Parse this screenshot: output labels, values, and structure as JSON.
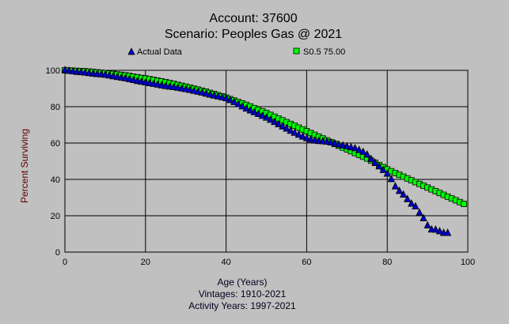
{
  "chart_data": {
    "type": "scatter",
    "title": "Account: 37600",
    "subtitle": "Scenario: Peoples Gas @ 2021",
    "xlabel": "Age (Years)",
    "ylabel": "Percent Surviving",
    "footnotes": [
      "Vintages: 1910-2021",
      "Activity Years: 1997-2021"
    ],
    "xlim": [
      0,
      100
    ],
    "ylim": [
      0,
      100
    ],
    "xticks": [
      0,
      20,
      40,
      60,
      80,
      100
    ],
    "yticks": [
      0,
      20,
      40,
      60,
      80,
      100
    ],
    "grid": true,
    "legend_position": "top",
    "series": [
      {
        "name": "Actual Data",
        "marker": "triangle",
        "color": "#0000cc",
        "x": [
          0,
          1,
          2,
          3,
          4,
          5,
          6,
          7,
          8,
          9,
          10,
          11,
          12,
          13,
          14,
          15,
          16,
          17,
          18,
          19,
          20,
          21,
          22,
          23,
          24,
          25,
          26,
          27,
          28,
          29,
          30,
          31,
          32,
          33,
          34,
          35,
          36,
          37,
          38,
          39,
          40,
          41,
          42,
          43,
          44,
          45,
          46,
          47,
          48,
          49,
          50,
          51,
          52,
          53,
          54,
          55,
          56,
          57,
          58,
          59,
          60,
          61,
          62,
          63,
          64,
          65,
          66,
          67,
          68,
          69,
          70,
          71,
          72,
          73,
          74,
          75,
          76,
          77,
          78,
          79,
          80,
          81,
          82,
          83,
          84,
          85,
          86,
          87,
          88,
          89,
          90,
          91,
          92,
          93,
          94,
          95
        ],
        "y": [
          100,
          99.6,
          99.3,
          99.0,
          98.8,
          98.6,
          98.3,
          98.0,
          97.8,
          97.6,
          97.4,
          97.0,
          96.6,
          96.2,
          95.8,
          95.5,
          95.0,
          94.5,
          94.0,
          93.6,
          93.2,
          92.8,
          92.4,
          92.0,
          91.6,
          91.2,
          90.9,
          90.6,
          90.3,
          89.9,
          89.5,
          89.1,
          88.6,
          88.1,
          87.6,
          87.0,
          86.5,
          86.0,
          85.5,
          85.0,
          84.5,
          83.5,
          82.4,
          81.2,
          80.0,
          78.8,
          77.8,
          76.8,
          75.8,
          74.8,
          73.8,
          72.6,
          71.4,
          70.2,
          69.0,
          67.8,
          66.6,
          65.5,
          64.4,
          63.4,
          62.5,
          61.8,
          61.2,
          61.0,
          60.8,
          60.6,
          60.2,
          59.6,
          59.0,
          58.5,
          58.0,
          57.5,
          57.0,
          56.0,
          55.0,
          53.5,
          51.0,
          49.0,
          47.0,
          45.0,
          43.0,
          40.0,
          36.0,
          33.5,
          31.5,
          29.0,
          26.5,
          25.0,
          21.5,
          18.5,
          14.5,
          12.3,
          12.2,
          11.3,
          10.4,
          10.4
        ]
      },
      {
        "name": "S0.5 75.00",
        "marker": "square",
        "color": "#00ff00",
        "x": [
          0,
          1,
          2,
          3,
          4,
          5,
          6,
          7,
          8,
          9,
          10,
          11,
          12,
          13,
          14,
          15,
          16,
          17,
          18,
          19,
          20,
          21,
          22,
          23,
          24,
          25,
          26,
          27,
          28,
          29,
          30,
          31,
          32,
          33,
          34,
          35,
          36,
          37,
          38,
          39,
          40,
          41,
          42,
          43,
          44,
          45,
          46,
          47,
          48,
          49,
          50,
          51,
          52,
          53,
          54,
          55,
          56,
          57,
          58,
          59,
          60,
          61,
          62,
          63,
          64,
          65,
          66,
          67,
          68,
          69,
          70,
          71,
          72,
          73,
          74,
          75,
          76,
          77,
          78,
          79,
          80,
          81,
          82,
          83,
          84,
          85,
          86,
          87,
          88,
          89,
          90,
          91,
          92,
          93,
          94,
          95,
          96,
          97,
          98,
          99
        ],
        "y": [
          100,
          99.9,
          99.8,
          99.7,
          99.6,
          99.5,
          99.3,
          99.1,
          98.9,
          98.7,
          98.5,
          98.2,
          98.0,
          97.7,
          97.5,
          97.2,
          96.9,
          96.5,
          96.2,
          95.8,
          95.5,
          95.1,
          94.7,
          94.3,
          93.9,
          93.5,
          93.0,
          92.5,
          92.0,
          91.5,
          91.0,
          90.5,
          89.9,
          89.4,
          88.8,
          88.3,
          87.6,
          87.0,
          86.3,
          85.7,
          85.0,
          84.2,
          83.4,
          82.6,
          81.8,
          81.0,
          80.1,
          79.2,
          78.3,
          77.4,
          76.5,
          75.5,
          74.5,
          73.5,
          72.5,
          71.5,
          70.5,
          69.5,
          68.5,
          67.5,
          66.5,
          65.5,
          64.5,
          63.5,
          62.5,
          61.5,
          60.5,
          59.5,
          58.5,
          57.5,
          56.5,
          55.5,
          54.5,
          53.5,
          52.5,
          51.5,
          50.3,
          49.1,
          47.9,
          46.7,
          45.5,
          44.5,
          43.5,
          42.5,
          41.5,
          40.5,
          39.5,
          38.5,
          37.5,
          36.5,
          35.5,
          34.5,
          33.5,
          32.5,
          31.5,
          30.5,
          29.5,
          28.5,
          27.5,
          26.5
        ]
      }
    ]
  }
}
